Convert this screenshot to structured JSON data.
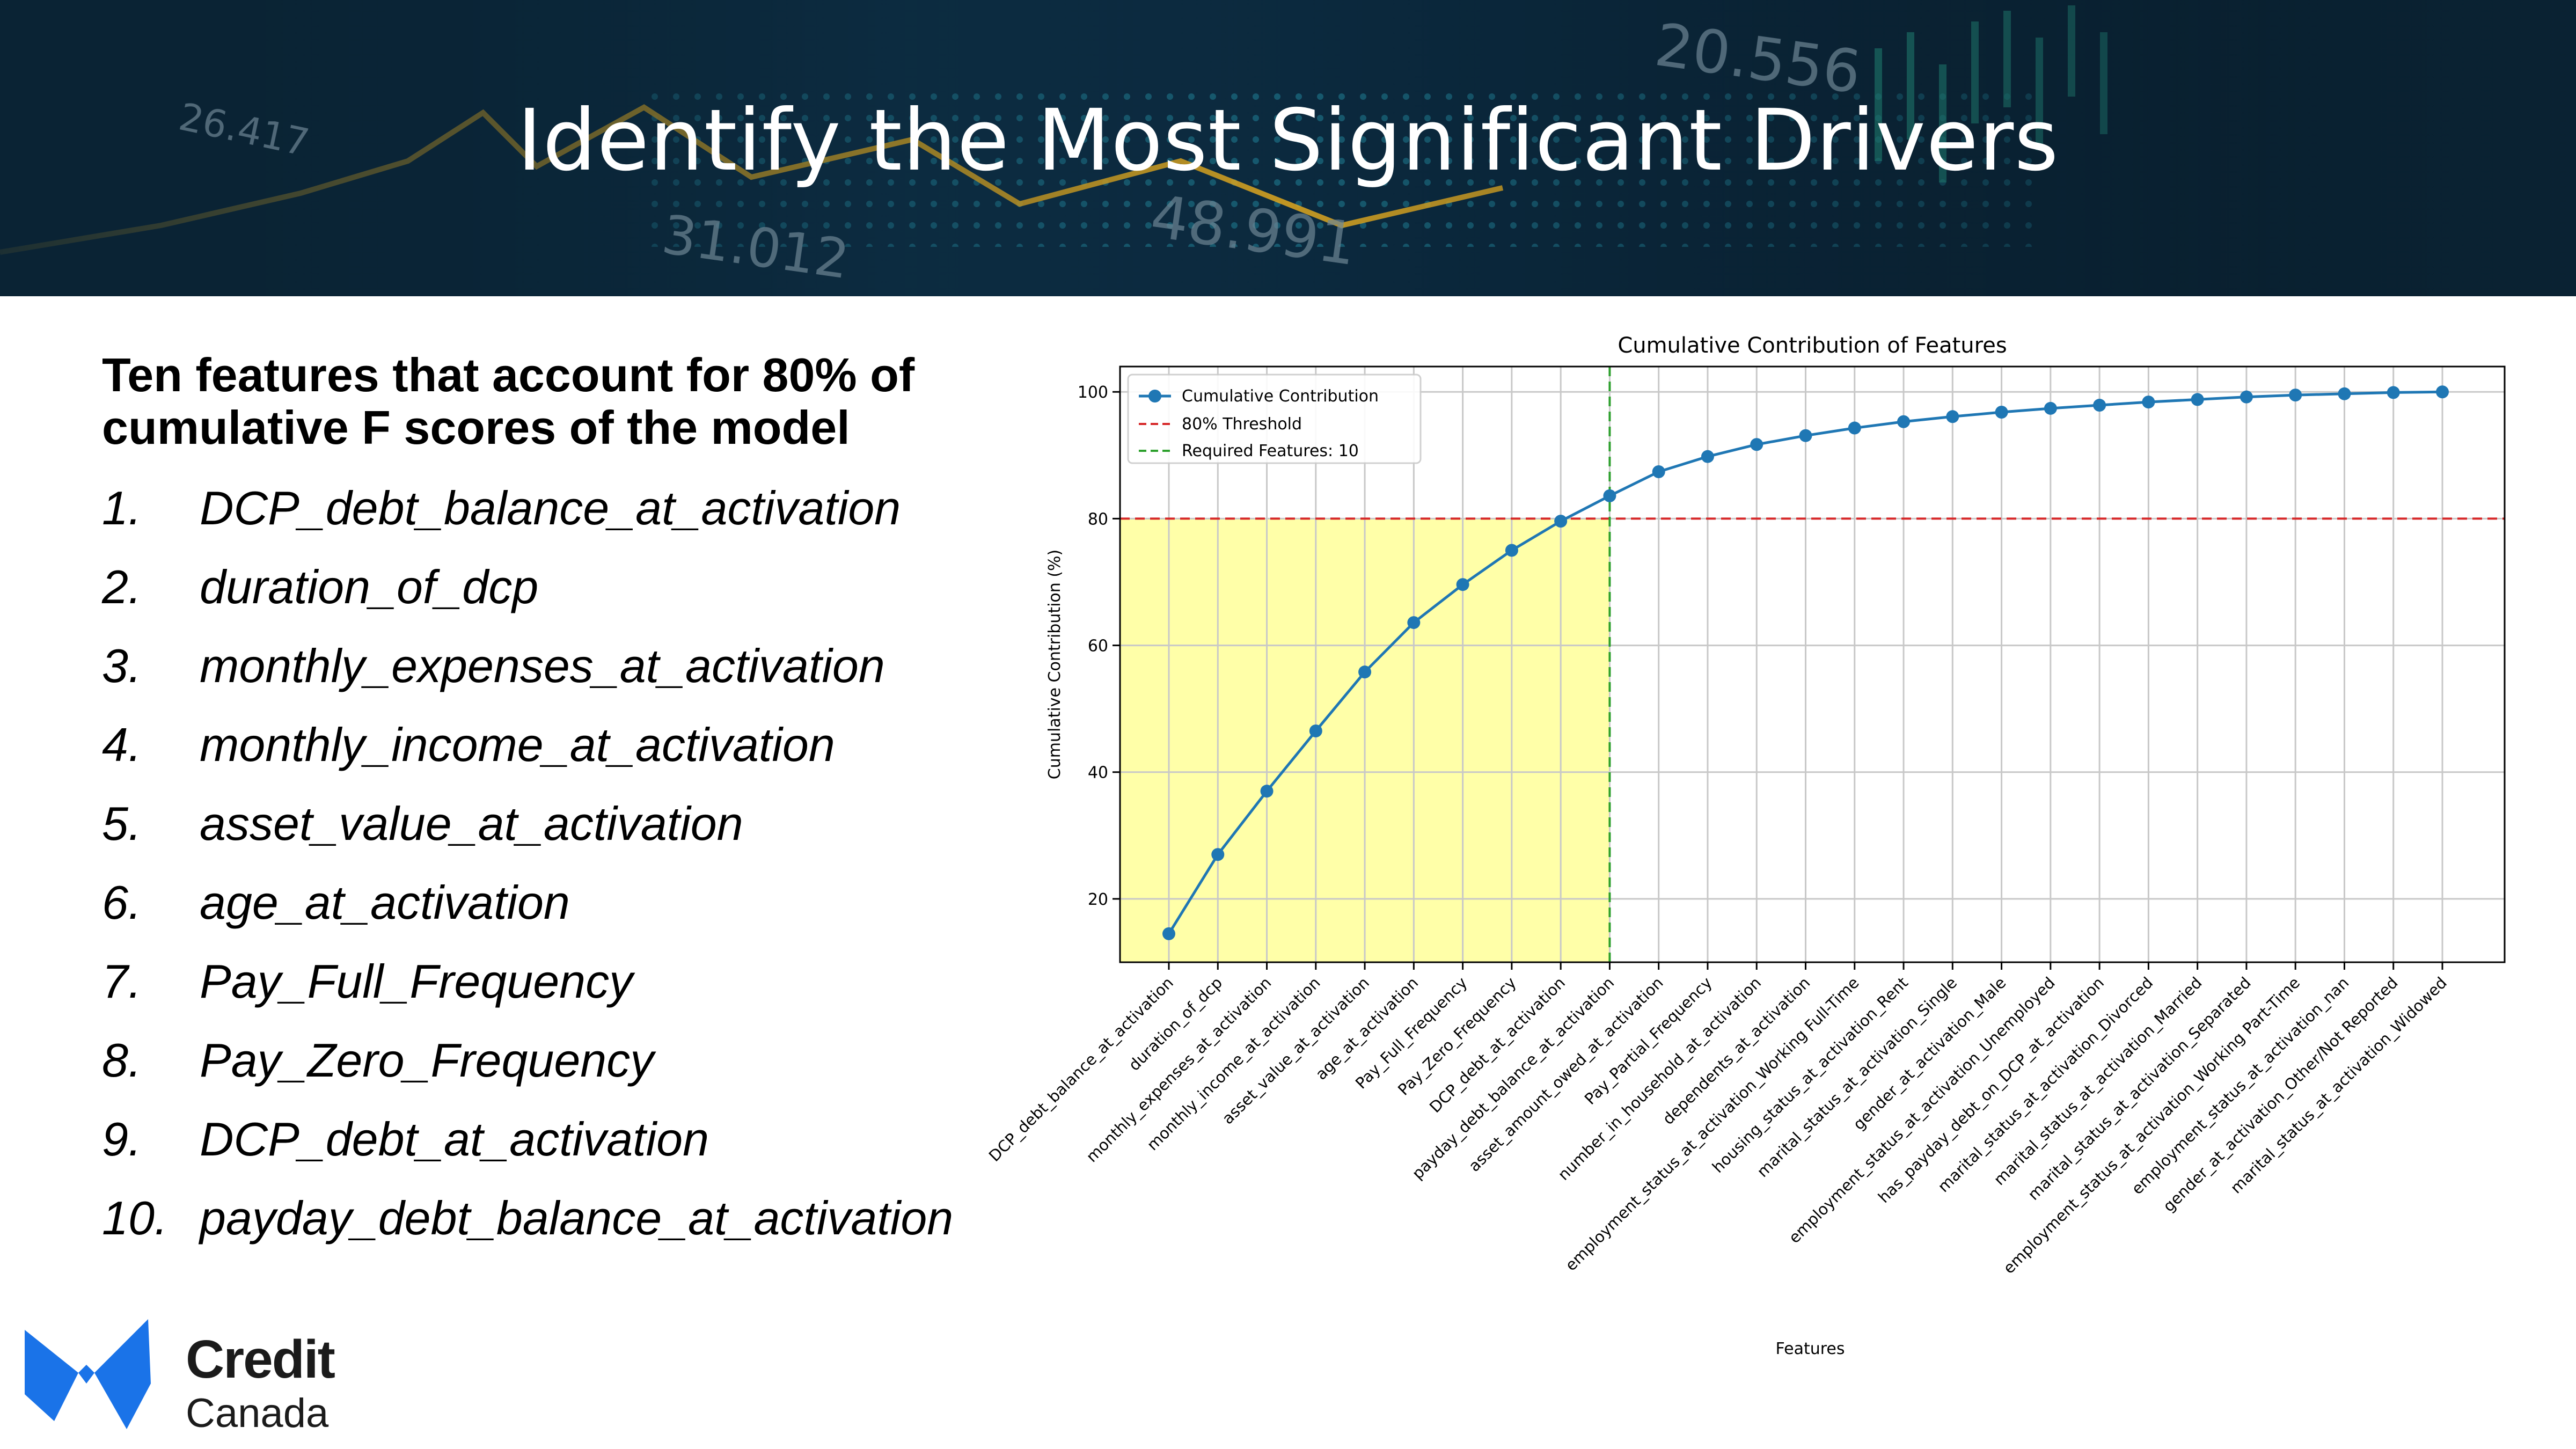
{
  "slide": {
    "title": "Identify the Most Significant Drivers",
    "heading": "Ten features that account for 80% of cumulative F scores of the model",
    "features": [
      {
        "num": "1.",
        "text": "DCP_debt_balance_at_activation"
      },
      {
        "num": "2.",
        "text": "duration_of_dcp"
      },
      {
        "num": "3.",
        "text": "monthly_expenses_at_activation"
      },
      {
        "num": "4.",
        "text": "monthly_income_at_activation"
      },
      {
        "num": "5.",
        "text": "asset_value_at_activation"
      },
      {
        "num": "6.",
        "text": "age_at_activation"
      },
      {
        "num": "7.",
        "text": "Pay_Full_Frequency"
      },
      {
        "num": "8.",
        "text": "Pay_Zero_Frequency"
      },
      {
        "num": "9.",
        "text": "DCP_debt_at_activation"
      },
      {
        "num": "10.",
        "text": "payday_debt_balance_at_activation"
      }
    ]
  },
  "banner_numbers": [
    "26.417",
    "20.556",
    "31.012",
    "48.991"
  ],
  "logo": {
    "line1": "Credit",
    "line2": "Canada",
    "color": "#1a73e8"
  },
  "colors": {
    "line": "#1f77b4",
    "threshold": "#d62728",
    "required": "#2ca02c",
    "highlight": "#ffff99"
  },
  "chart_data": {
    "type": "line",
    "title": "Cumulative Contribution of Features",
    "xlabel": "Features",
    "ylabel": "Cumulative Contribution (%)",
    "ylim": [
      10,
      104
    ],
    "yticks": [
      20,
      40,
      60,
      80,
      100
    ],
    "grid": true,
    "legend_position": "top-left",
    "categories": [
      "DCP_debt_balance_at_activation",
      "duration_of_dcp",
      "monthly_expenses_at_activation",
      "monthly_income_at_activation",
      "asset_value_at_activation",
      "age_at_activation",
      "Pay_Full_Frequency",
      "Pay_Zero_Frequency",
      "DCP_debt_at_activation",
      "payday_debt_balance_at_activation",
      "asset_amount_owed_at_activation",
      "Pay_Partial_Frequency",
      "number_in_household_at_activation",
      "dependents_at_activation",
      "employment_status_at_activation_Working Full-Time",
      "housing_status_at_activation_Rent",
      "marital_status_at_activation_Single",
      "gender_at_activation_Male",
      "employment_status_at_activation_Unemployed",
      "has_payday_debt_on_DCP_at_activation",
      "marital_status_at_activation_Divorced",
      "marital_status_at_activation_Married",
      "marital_status_at_activation_Separated",
      "employment_status_at_activation_Working Part-Time",
      "employment_status_at_activation_nan",
      "gender_at_activation_Other/Not Reported",
      "marital_status_at_activation_Widowed"
    ],
    "series": [
      {
        "name": "Cumulative Contribution",
        "values": [
          14.5,
          27.0,
          37.0,
          46.5,
          55.8,
          63.6,
          69.6,
          75.0,
          79.6,
          83.6,
          87.4,
          89.8,
          91.7,
          93.1,
          94.3,
          95.3,
          96.1,
          96.8,
          97.4,
          97.9,
          98.4,
          98.8,
          99.2,
          99.5,
          99.7,
          99.9,
          100.0
        ]
      }
    ],
    "threshold": {
      "name": "80% Threshold",
      "value": 80
    },
    "required": {
      "name": "Required Features: 10",
      "index": 9
    }
  }
}
